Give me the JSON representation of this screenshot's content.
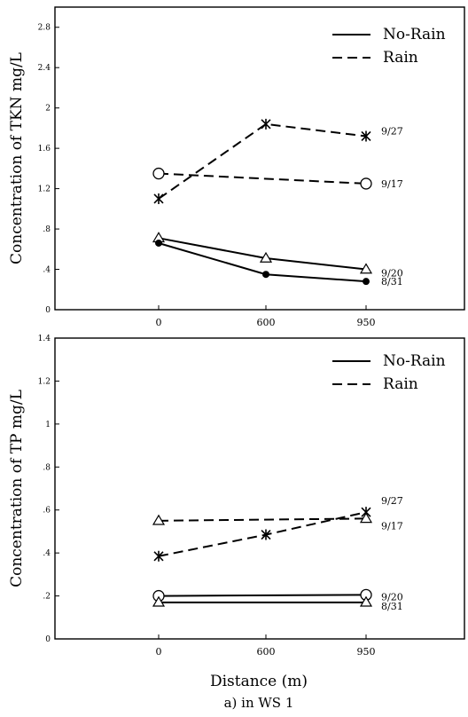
{
  "figure": {
    "xlabel": "Distance (m)",
    "caption": "a) in WS 1"
  },
  "chart_data": [
    {
      "type": "line",
      "ylabel": "Concentration of TKN mg/L",
      "ylim": [
        0,
        3.0
      ],
      "yticks": [
        "0",
        ".4",
        ".8",
        "1.2",
        "1.6",
        "2",
        "2.4",
        "2.8"
      ],
      "ytick_values": [
        0,
        0.4,
        0.8,
        1.2,
        1.6,
        2.0,
        2.4,
        2.8
      ],
      "xticks": [
        "0",
        "600",
        "950"
      ],
      "legend": {
        "position": "top-right",
        "entries": [
          {
            "label": "No-Rain",
            "style": "solid"
          },
          {
            "label": "Rain",
            "style": "dashed"
          }
        ]
      },
      "series": [
        {
          "name": "9/27",
          "style": "dashed",
          "marker": "star",
          "points": [
            [
              0,
              1.1
            ],
            [
              600,
              1.84
            ],
            [
              950,
              1.72
            ]
          ]
        },
        {
          "name": "9/17",
          "style": "dashed",
          "marker": "circle",
          "points": [
            [
              0,
              1.35
            ],
            [
              950,
              1.25
            ]
          ]
        },
        {
          "name": "9/20",
          "style": "solid",
          "marker": "triangle",
          "points": [
            [
              0,
              0.71
            ],
            [
              600,
              0.51
            ],
            [
              950,
              0.4
            ]
          ]
        },
        {
          "name": "8/31",
          "style": "solid",
          "marker": "dot",
          "points": [
            [
              0,
              0.66
            ],
            [
              600,
              0.35
            ],
            [
              950,
              0.28
            ]
          ]
        }
      ]
    },
    {
      "type": "line",
      "ylabel": "Concentration of TP mg/L",
      "ylim": [
        0,
        1.4
      ],
      "yticks": [
        "0",
        ".2",
        ".4",
        ".6",
        ".8",
        "1",
        "1.2",
        "1.4"
      ],
      "ytick_values": [
        0,
        0.2,
        0.4,
        0.6,
        0.8,
        1.0,
        1.2,
        1.4
      ],
      "xticks": [
        "0",
        "600",
        "950"
      ],
      "legend": {
        "position": "top-right",
        "entries": [
          {
            "label": "No-Rain",
            "style": "solid"
          },
          {
            "label": "Rain",
            "style": "dashed"
          }
        ]
      },
      "series": [
        {
          "name": "9/27",
          "style": "dashed",
          "marker": "star",
          "points": [
            [
              0,
              0.385
            ],
            [
              600,
              0.485
            ],
            [
              950,
              0.59
            ]
          ]
        },
        {
          "name": "9/17",
          "style": "dashed",
          "marker": "triangle",
          "points": [
            [
              0,
              0.55
            ],
            [
              950,
              0.56
            ]
          ]
        },
        {
          "name": "9/20",
          "style": "solid",
          "marker": "circle",
          "points": [
            [
              0,
              0.2
            ],
            [
              950,
              0.205
            ]
          ]
        },
        {
          "name": "8/31",
          "style": "solid",
          "marker": "triangle",
          "points": [
            [
              0,
              0.17
            ],
            [
              950,
              0.17
            ]
          ]
        }
      ]
    }
  ]
}
